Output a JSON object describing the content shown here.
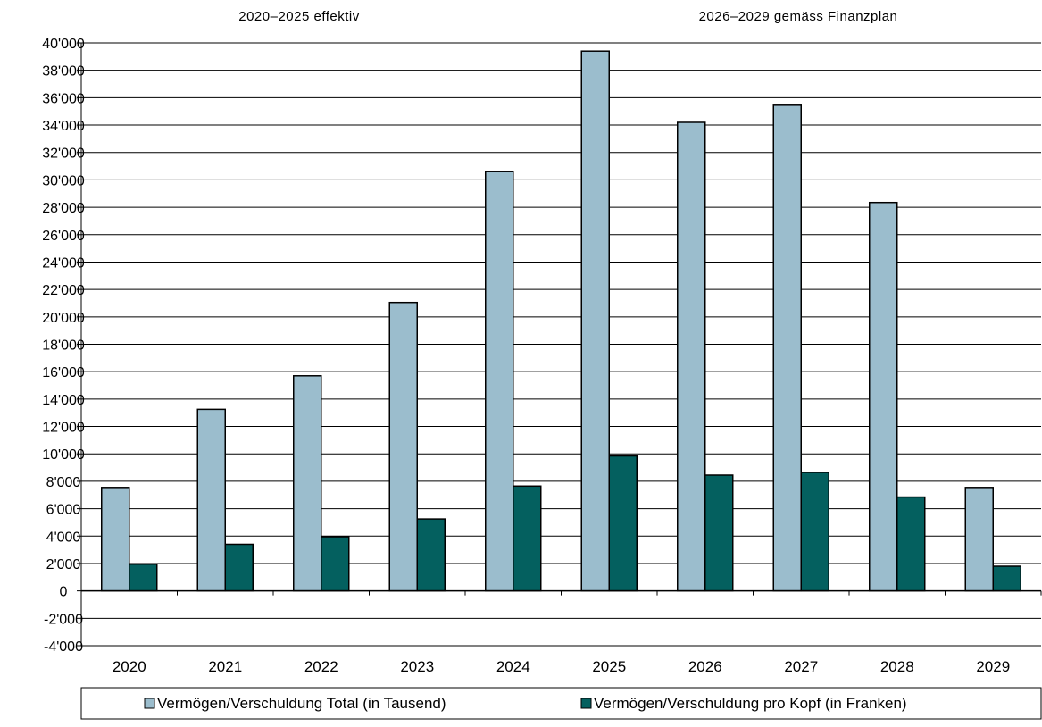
{
  "chart_data": {
    "type": "bar",
    "section_titles": [
      "2020–2025 effektiv",
      "2026–2029 gemäss Finanzplan"
    ],
    "categories": [
      "2020",
      "2021",
      "2022",
      "2023",
      "2024",
      "2025",
      "2026",
      "2027",
      "2028",
      "2029"
    ],
    "series": [
      {
        "name": "Vermögen/Verschuldung Total (in Tausend)",
        "color": "#9bbdcd",
        "values": [
          7550,
          13250,
          15700,
          21050,
          30600,
          39400,
          34200,
          35450,
          28350,
          7550
        ]
      },
      {
        "name": "Vermögen/Verschuldung pro Kopf (in Franken)",
        "color": "#04605f",
        "values": [
          1950,
          3400,
          3950,
          5250,
          7650,
          9850,
          8450,
          8650,
          6850,
          1800
        ]
      }
    ],
    "ylim": [
      -4000,
      40000
    ],
    "ytick_step": 2000,
    "ytick_labels": [
      "40'000",
      "38'000",
      "36'000",
      "34'000",
      "32'000",
      "30'000",
      "28'000",
      "26'000",
      "24'000",
      "22'000",
      "20'000",
      "18'000",
      "16'000",
      "14'000",
      "12'000",
      "10'000",
      "8'000",
      "6'000",
      "4'000",
      "2'000",
      "0",
      "-2'000",
      "-4'000"
    ],
    "grid": true,
    "legend_position": "bottom"
  }
}
